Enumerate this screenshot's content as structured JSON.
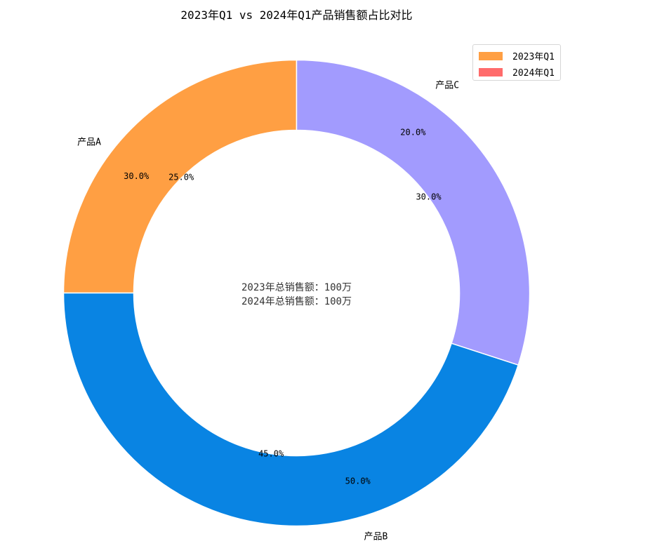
{
  "chart_data": {
    "type": "pie",
    "subtype": "donut",
    "title": "2023年Q1 vs 2024年Q1产品销售额占比对比",
    "categories": [
      "产品A",
      "产品B",
      "产品C"
    ],
    "series": [
      {
        "name": "2023年Q1",
        "values": [
          30.0,
          50.0,
          20.0
        ],
        "labels": [
          "30.0%",
          "50.0%",
          "20.0%"
        ],
        "legend_color": "#ff9f43"
      },
      {
        "name": "2024年Q1",
        "values": [
          25.0,
          45.0,
          30.0
        ],
        "labels": [
          "25.0%",
          "45.0%",
          "30.0%"
        ],
        "legend_color": "#ff6b6b"
      }
    ],
    "wedge_colors": [
      "#ff9f43",
      "#0984e3",
      "#a29bfe"
    ],
    "visible_ring_values": [
      25.0,
      45.0,
      30.0
    ],
    "start_angle_deg": 90,
    "direction": "counterclockwise",
    "center_text": [
      "2023年总销售额：100万",
      "2024年总销售额：100万"
    ],
    "legend": {
      "position": "upper right",
      "entries": [
        "2023年Q1",
        "2024年Q1"
      ]
    },
    "grid": false
  },
  "title": "2023年Q1 vs 2024年Q1产品销售额占比对比",
  "legend": {
    "items": [
      {
        "label": "2023年Q1",
        "color": "#ff9f43"
      },
      {
        "label": "2024年Q1",
        "color": "#ff6b6b"
      }
    ]
  },
  "center_text": {
    "line1": "2023年总销售额：100万",
    "line2": "2024年总销售额：100万"
  }
}
